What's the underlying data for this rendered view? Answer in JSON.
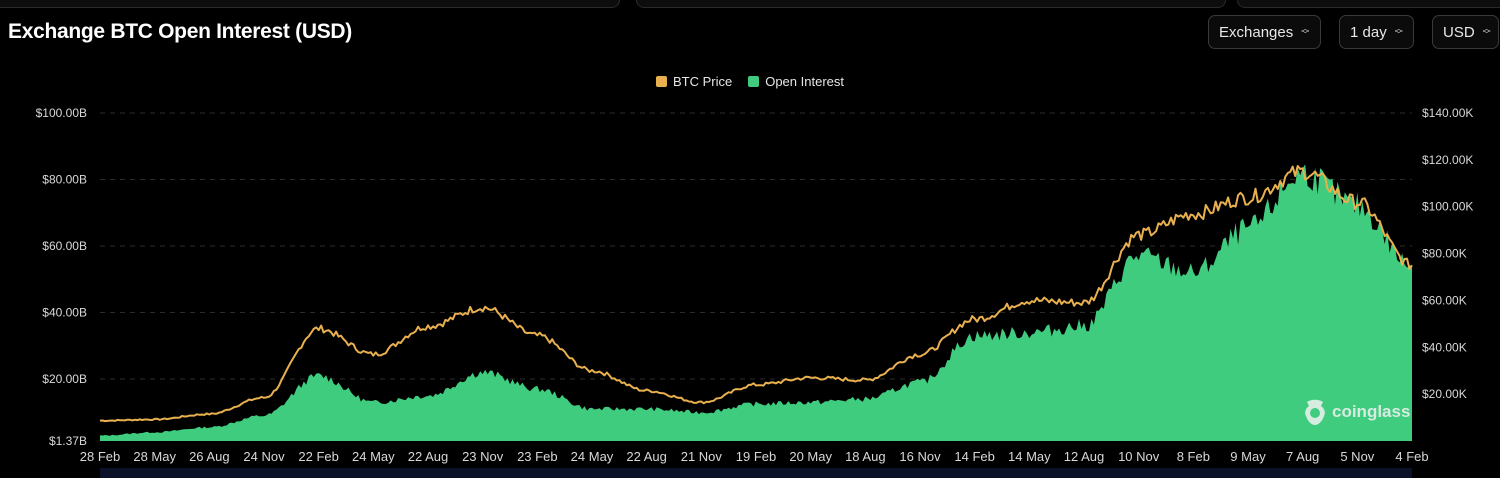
{
  "title": "Exchange BTC Open Interest (USD)",
  "controls": {
    "exchanges": "Exchanges",
    "interval": "1 day",
    "currency": "USD"
  },
  "legend": {
    "price_label": "BTC Price",
    "oi_label": "Open Interest"
  },
  "colors": {
    "price": "#e8b04e",
    "open_interest": "#3fcc7f",
    "background": "#000000"
  },
  "watermark": "coinglass",
  "chart_data": {
    "type": "area",
    "title": "Exchange BTC Open Interest (USD)",
    "x_tick_labels": [
      "28 Feb",
      "28 May",
      "26 Aug",
      "24 Nov",
      "22 Feb",
      "24 May",
      "22 Aug",
      "23 Nov",
      "23 Feb",
      "24 May",
      "22 Aug",
      "21 Nov",
      "19 Feb",
      "20 May",
      "18 Aug",
      "16 Nov",
      "14 Feb",
      "14 May",
      "12 Aug",
      "10 Nov",
      "8 Feb",
      "9 May",
      "7 Aug",
      "5 Nov",
      "4 Feb"
    ],
    "left_axis": {
      "tick_labels": [
        "$1.37B",
        "$20.00B",
        "$40.00B",
        "$60.00B",
        "$80.00B",
        "$100.00B"
      ],
      "min": 1.37,
      "max": 100
    },
    "right_axis": {
      "tick_labels": [
        "$20.00K",
        "$40.00K",
        "$60.00K",
        "$80.00K",
        "$100.00K",
        "$120.00K",
        "$140.00K"
      ],
      "max": 140000
    },
    "grid": "horizontal-dashed",
    "legend_position": "top-center",
    "series": [
      {
        "name": "BTC Price",
        "axis": "right",
        "type": "line",
        "values": [
          8700,
          9200,
          11500,
          18500,
          48000,
          37000,
          49000,
          57000,
          45000,
          30000,
          21500,
          16500,
          24000,
          27000,
          26000,
          37000,
          52000,
          60000,
          59000,
          88000,
          97000,
          104000,
          115000,
          102000,
          75000
        ]
      },
      {
        "name": "Open Interest",
        "axis": "left",
        "type": "area",
        "values": [
          3.0,
          4.0,
          5.5,
          9.0,
          21.0,
          13.0,
          15.0,
          22.0,
          17.0,
          11.0,
          11.0,
          10.0,
          12.5,
          13.0,
          14.0,
          19.0,
          33.0,
          34.0,
          36.0,
          57.0,
          52.0,
          65.0,
          82.0,
          72.0,
          54.0
        ]
      }
    ]
  }
}
